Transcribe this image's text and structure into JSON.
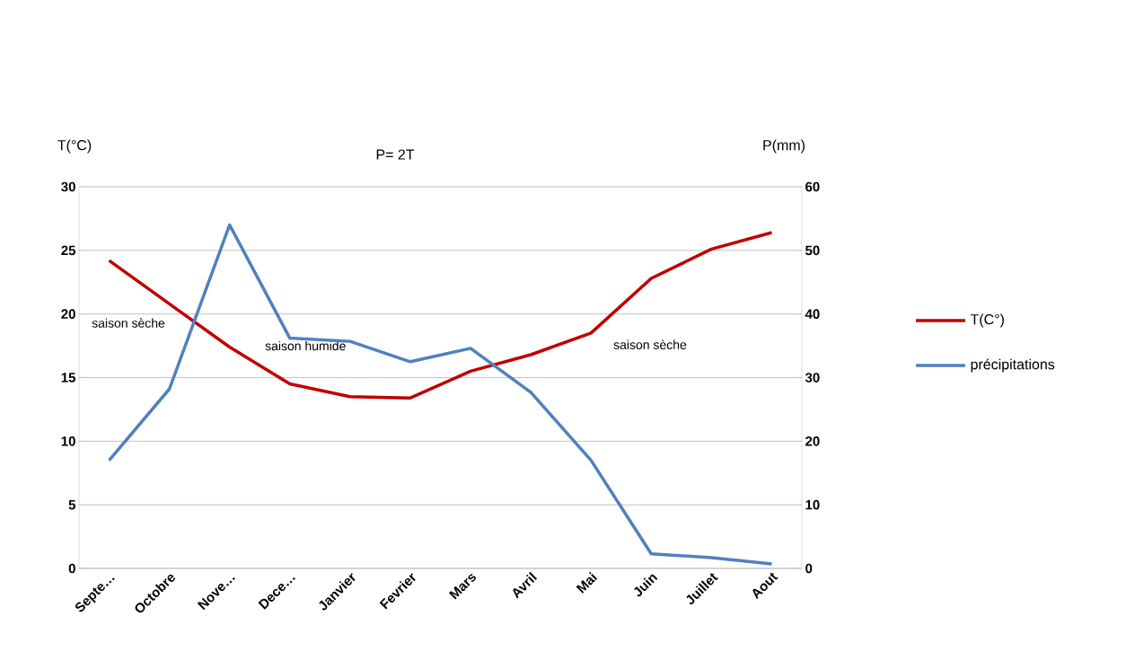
{
  "chart_data": {
    "type": "line",
    "title": "P= 2T",
    "ylabel": "T(°C)",
    "y2label": "P(mm)",
    "categories": [
      "Septe…",
      "Octobre",
      "Nove…",
      "Dece…",
      "Janvier",
      "Fevrier",
      "Mars",
      "Avril",
      "Mai",
      "Juin",
      "Juillet",
      "Aout"
    ],
    "series": [
      {
        "name": "T(C°)",
        "color": "#c00000",
        "values": [
          24.2,
          20.8,
          17.4,
          14.5,
          13.5,
          13.4,
          15.5,
          16.8,
          18.5,
          22.8,
          25.1,
          26.4
        ]
      },
      {
        "name": "précipitations",
        "color": "#4f81bd",
        "axis": "y2",
        "values": [
          17,
          28.2,
          54,
          36.2,
          35.7,
          32.5,
          34.6,
          27.7,
          17,
          2.3,
          1.7,
          0.7
        ]
      }
    ],
    "ylim": [
      0,
      30
    ],
    "yticks": [
      0,
      5,
      10,
      15,
      20,
      25,
      30
    ],
    "y2lim": [
      0,
      60
    ],
    "y2ticks": [
      0,
      10,
      20,
      30,
      40,
      50,
      60
    ],
    "annotations": [
      "saison sèche",
      "saison humide",
      "saison sèche"
    ],
    "grid": "y",
    "legend": "right",
    "marker": "none",
    "line_style": "solid"
  }
}
